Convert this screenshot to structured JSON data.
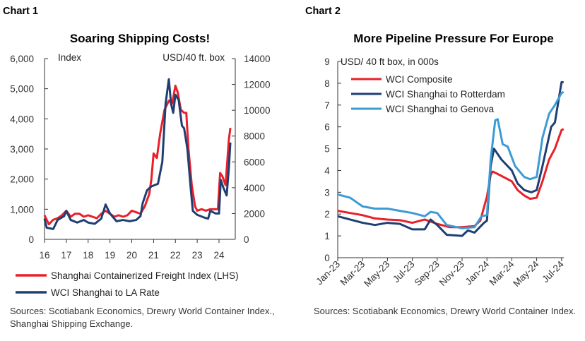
{
  "chart_data": [
    {
      "type": "line",
      "header": "Chart 1",
      "title": "Soaring Shipping Costs!",
      "ylabel_left": "Index",
      "ylabel_right": "USD/40 ft. box",
      "xlim": [
        2016,
        2024.6
      ],
      "ylim_left": [
        0,
        6000
      ],
      "ylim_right": [
        0,
        14000
      ],
      "x_ticks": [
        "16",
        "17",
        "18",
        "19",
        "20",
        "21",
        "22",
        "23",
        "24"
      ],
      "y_ticks_left": [
        "0",
        "1,000",
        "2,000",
        "3,000",
        "4,000",
        "5,000",
        "6,000"
      ],
      "y_ticks_right": [
        "0",
        "2000",
        "4000",
        "6000",
        "8000",
        "10000",
        "12000",
        "14000"
      ],
      "legend_placement": "bottom",
      "series": [
        {
          "name": "Shanghai Containerized Freight Index (LHS)",
          "axis": "left",
          "color": "#e8202a",
          "x": [
            2016.0,
            2016.2,
            2016.4,
            2016.6,
            2016.8,
            2017.0,
            2017.2,
            2017.4,
            2017.6,
            2017.8,
            2018.0,
            2018.2,
            2018.4,
            2018.6,
            2018.8,
            2019.0,
            2019.2,
            2019.4,
            2019.6,
            2019.8,
            2020.0,
            2020.2,
            2020.4,
            2020.6,
            2020.8,
            2020.9,
            2021.0,
            2021.15,
            2021.3,
            2021.5,
            2021.7,
            2021.85,
            2022.0,
            2022.1,
            2022.25,
            2022.4,
            2022.5,
            2022.6,
            2022.75,
            2022.9,
            2023.0,
            2023.2,
            2023.4,
            2023.6,
            2023.8,
            2023.95,
            2024.05,
            2024.15,
            2024.3,
            2024.45,
            2024.52
          ],
          "y": [
            800,
            500,
            650,
            700,
            800,
            950,
            750,
            850,
            850,
            750,
            800,
            750,
            700,
            850,
            950,
            850,
            750,
            800,
            750,
            800,
            950,
            900,
            850,
            1100,
            1500,
            2000,
            2850,
            2700,
            3500,
            4300,
            4600,
            4500,
            5100,
            4900,
            4300,
            4200,
            4200,
            3000,
            1800,
            1100,
            950,
            1000,
            950,
            1000,
            1000,
            1000,
            2200,
            2100,
            1800,
            3300,
            3700
          ]
        },
        {
          "name": "WCI Shanghai to LA Rate",
          "axis": "right",
          "color": "#1f3f73",
          "x": [
            2016.0,
            2016.1,
            2016.4,
            2016.6,
            2016.9,
            2017.0,
            2017.2,
            2017.5,
            2017.8,
            2018.0,
            2018.3,
            2018.6,
            2018.8,
            2019.0,
            2019.3,
            2019.6,
            2019.9,
            2020.2,
            2020.4,
            2020.5,
            2020.7,
            2020.9,
            2021.2,
            2021.4,
            2021.55,
            2021.7,
            2021.8,
            2021.9,
            2022.0,
            2022.15,
            2022.3,
            2022.4,
            2022.55,
            2022.7,
            2022.8,
            2023.0,
            2023.3,
            2023.5,
            2023.6,
            2023.85,
            2024.0,
            2024.08,
            2024.2,
            2024.35,
            2024.45,
            2024.52
          ],
          "y": [
            1600,
            900,
            800,
            1500,
            1800,
            2200,
            1500,
            1300,
            1500,
            1300,
            1200,
            1600,
            2700,
            2000,
            1400,
            1500,
            1400,
            1500,
            1800,
            2800,
            3800,
            4100,
            4300,
            6000,
            10500,
            12400,
            10500,
            9800,
            11200,
            10800,
            8800,
            8600,
            7000,
            4000,
            2200,
            1900,
            1700,
            1600,
            2200,
            2000,
            2000,
            4600,
            4000,
            3400,
            5500,
            7500
          ]
        }
      ],
      "sources": "Sources: Scotiabank Economics, Drewry World Container Index., Shanghai Shipping Exchange."
    },
    {
      "type": "line",
      "header": "Chart 2",
      "title": "More Pipeline Pressure For Europe",
      "ylabel": "USD/ 40 ft box, in 000s",
      "ylim": [
        0,
        9
      ],
      "x_ticks": [
        "Jan-23",
        "Mar-23",
        "May-23",
        "Jul-23",
        "Sep-23",
        "Nov-23",
        "Jan-24",
        "Mar-24",
        "May-24",
        "Jul-24"
      ],
      "y_ticks": [
        "0",
        "1",
        "2",
        "3",
        "4",
        "5",
        "6",
        "7",
        "8",
        "9"
      ],
      "legend_placement": "top-left",
      "series": [
        {
          "name": "WCI Composite",
          "color": "#e8202a",
          "x": [
            "2023-01",
            "2023-02",
            "2023-03",
            "2023-04",
            "2023-05",
            "2023-06",
            "2023-07",
            "2023-08",
            "2023-09",
            "2023-10",
            "2023-11",
            "2023-12",
            "2023-12-15",
            "2024-01",
            "2024-01-10",
            "2024-01-15",
            "2024-02",
            "2024-03",
            "2024-03-15",
            "2024-04",
            "2024-04-15",
            "2024-05",
            "2024-05-15",
            "2024-06",
            "2024-06-15",
            "2024-07",
            "2024-07-06"
          ],
          "y": [
            2.15,
            2.05,
            1.95,
            1.8,
            1.75,
            1.72,
            1.6,
            1.75,
            1.55,
            1.4,
            1.4,
            1.45,
            1.7,
            2.8,
            3.8,
            3.95,
            3.8,
            3.5,
            3.1,
            2.85,
            2.7,
            2.75,
            3.5,
            4.5,
            5.0,
            5.85,
            5.9
          ]
        },
        {
          "name": "WCI Shanghai to Rotterdam",
          "color": "#1f3f73",
          "x": [
            "2023-01",
            "2023-02",
            "2023-03",
            "2023-04",
            "2023-05",
            "2023-06",
            "2023-07",
            "2023-08",
            "2023-08-15",
            "2023-09",
            "2023-09-24",
            "2023-11",
            "2023-11-15",
            "2023-12",
            "2023-12-24",
            "2024-01",
            "2024-01-10",
            "2024-01-18",
            "2024-02-06",
            "2024-03",
            "2024-03-15",
            "2024-04",
            "2024-04-18",
            "2024-05",
            "2024-05-15",
            "2024-06-06",
            "2024-06-15",
            "2024-07",
            "2024-07-06"
          ],
          "y": [
            1.9,
            1.75,
            1.6,
            1.5,
            1.6,
            1.55,
            1.3,
            1.3,
            1.75,
            1.5,
            1.05,
            1.0,
            1.25,
            1.15,
            1.6,
            1.7,
            4.2,
            5.0,
            4.5,
            4.0,
            3.4,
            3.1,
            3.0,
            3.1,
            4.2,
            6.0,
            6.2,
            8.05,
            8.05
          ]
        },
        {
          "name": "WCI Shanghai to Genova",
          "color": "#3d9bd4",
          "x": [
            "2023-01",
            "2023-02",
            "2023-03",
            "2023-04",
            "2023-05",
            "2023-06",
            "2023-07",
            "2023-08",
            "2023-08-15",
            "2023-09",
            "2023-09-24",
            "2023-11",
            "2023-12",
            "2023-12-18",
            "2024-01",
            "2024-01-10",
            "2024-01-21",
            "2024-01-27",
            "2024-02-09",
            "2024-02-21",
            "2024-03-09",
            "2024-04",
            "2024-04-15",
            "2024-05",
            "2024-05-15",
            "2024-06",
            "2024-06-15",
            "2024-07",
            "2024-07-06"
          ],
          "y": [
            2.9,
            2.75,
            2.35,
            2.25,
            2.25,
            2.15,
            2.05,
            1.9,
            2.1,
            2.05,
            1.5,
            1.35,
            1.4,
            1.9,
            1.95,
            4.5,
            6.3,
            6.35,
            5.2,
            5.1,
            4.2,
            3.7,
            3.6,
            3.7,
            5.5,
            6.6,
            7.0,
            7.55,
            7.6
          ]
        }
      ],
      "sources": "Sources: Scotiabank Economics, Drewry World Container Index."
    }
  ]
}
